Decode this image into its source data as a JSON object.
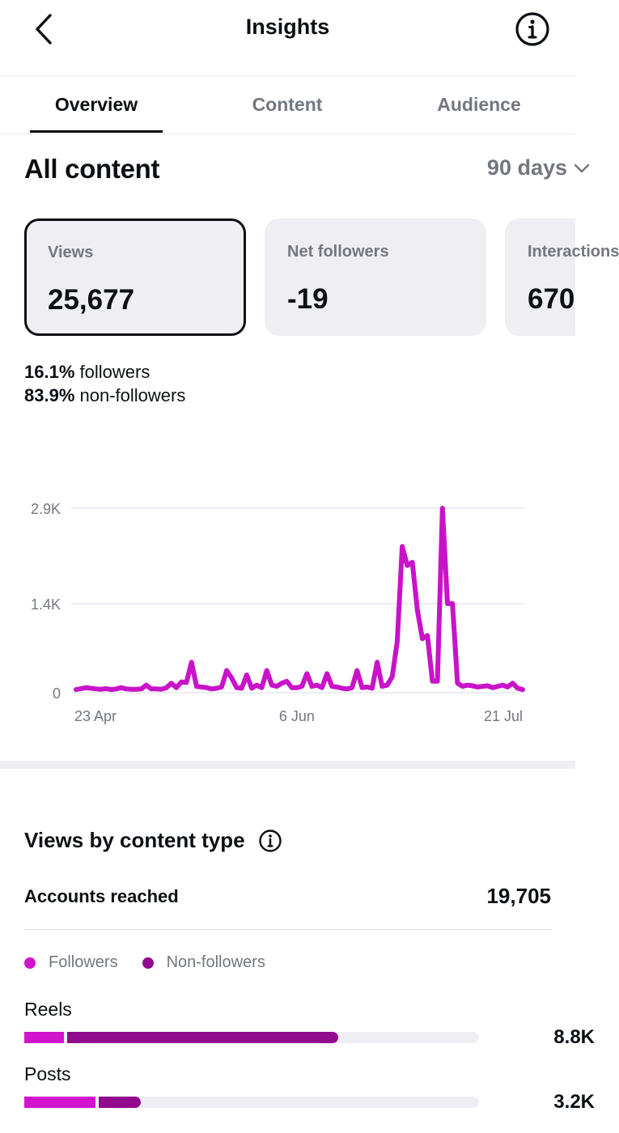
{
  "header": {
    "title": "Insights",
    "back_icon": "chevron-left-icon",
    "info_icon": "info-circle-icon"
  },
  "tabs": [
    {
      "label": "Overview",
      "active": true
    },
    {
      "label": "Content",
      "active": false
    },
    {
      "label": "Audience",
      "active": false
    }
  ],
  "overview": {
    "section_title": "All content",
    "range_label": "90 days",
    "cards": [
      {
        "label": "Views",
        "value": "25,677",
        "selected": true
      },
      {
        "label": "Net followers",
        "value": "-19",
        "selected": false
      },
      {
        "label": "Interactions",
        "value": "670",
        "selected": false
      }
    ],
    "followers_pct": "16.1%",
    "followers_text": "followers",
    "nonfollowers_pct": "83.9%",
    "nonfollowers_text": "non-followers"
  },
  "chart_data": {
    "type": "line",
    "color": "#c913c9",
    "y_ticks": [
      {
        "value": 0,
        "label": "0"
      },
      {
        "value": 1400,
        "label": "1.4K"
      },
      {
        "value": 2900,
        "label": "2.9K"
      }
    ],
    "ylim": [
      0,
      2900
    ],
    "x_ticks": [
      {
        "index": 0,
        "label": "23 Apr"
      },
      {
        "index": 44,
        "label": "6 Jun"
      },
      {
        "index": 89,
        "label": "21 Jul"
      }
    ],
    "grid": true,
    "values": [
      50,
      65,
      80,
      70,
      60,
      55,
      65,
      50,
      60,
      80,
      60,
      55,
      55,
      60,
      120,
      60,
      60,
      55,
      80,
      150,
      80,
      170,
      160,
      480,
      100,
      90,
      80,
      60,
      70,
      90,
      350,
      230,
      80,
      70,
      280,
      70,
      120,
      80,
      350,
      120,
      100,
      150,
      180,
      80,
      80,
      100,
      300,
      100,
      120,
      80,
      300,
      100,
      90,
      70,
      60,
      80,
      350,
      80,
      90,
      70,
      480,
      100,
      120,
      250,
      800,
      2300,
      2000,
      2050,
      1300,
      850,
      900,
      180,
      180,
      2900,
      1400,
      1400,
      150,
      100,
      120,
      110,
      90,
      100,
      110,
      80,
      100,
      120,
      90,
      150,
      70,
      50
    ]
  },
  "content_type": {
    "title": "Views by content type",
    "info_icon": "info-circle-icon",
    "accounts_label": "Accounts reached",
    "accounts_value": "19,705",
    "legend": [
      {
        "label": "Followers",
        "color": "#d014cc"
      },
      {
        "label": "Non-followers",
        "color": "#920b8e"
      }
    ],
    "rows": [
      {
        "label": "Reels",
        "value": "8.8K",
        "followers_fraction": 0.087,
        "nonfollowers_fraction": 0.597
      },
      {
        "label": "Posts",
        "value": "3.2K",
        "followers_fraction": 0.157,
        "nonfollowers_fraction": 0.093
      }
    ]
  }
}
